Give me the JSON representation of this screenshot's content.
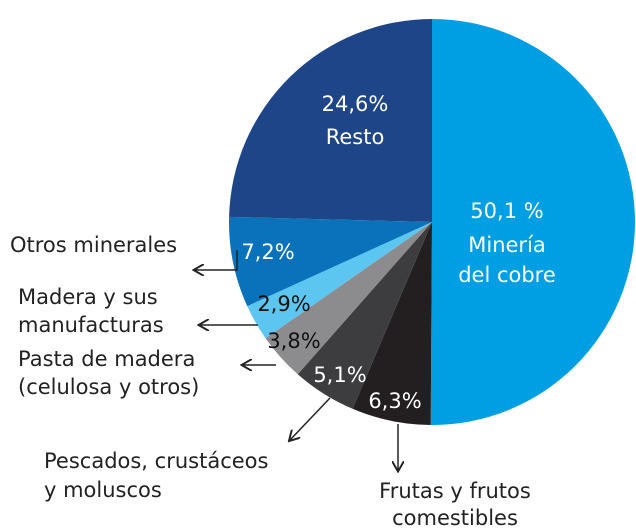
{
  "chart_data": {
    "type": "pie",
    "categories": [
      [
        "Minería",
        "del cobre"
      ],
      [
        "Frutas y frutos",
        "comestibles"
      ],
      [
        "Pescados, crustáceos",
        "y moluscos"
      ],
      [
        "Pasta de madera",
        "(celulosa y otros)"
      ],
      [
        "Madera y sus",
        "manufacturas"
      ],
      [
        "Otros minerales"
      ],
      [
        "Resto"
      ]
    ],
    "values": [
      50.1,
      6.3,
      5.1,
      3.8,
      2.9,
      7.2,
      24.6
    ],
    "value_labels": [
      "50,1 %",
      "6,3%",
      "5,1%",
      "3,8%",
      "2,9%",
      "7,2%",
      "24,6%"
    ],
    "colors": [
      "#009fe3",
      "#231f20",
      "#3d3d3f",
      "#8c8c8e",
      "#5cc6f0",
      "#0a72bb",
      "#1d4587"
    ]
  }
}
